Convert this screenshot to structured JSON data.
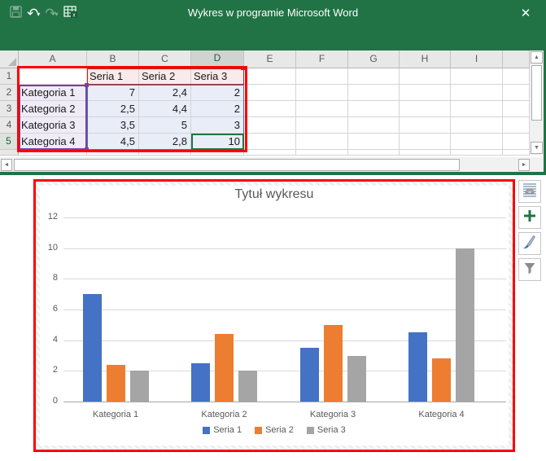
{
  "window": {
    "title": "Wykres w programie Microsoft Word",
    "close_glyph": "✕"
  },
  "toolbar": {
    "undo_glyph": "↶",
    "redo_glyph": "↷",
    "dropdown_glyph": "▾"
  },
  "spreadsheet": {
    "column_headers": [
      "A",
      "B",
      "C",
      "D",
      "E",
      "F",
      "G",
      "H",
      "I",
      ""
    ],
    "selected_column": "D",
    "selected_row": "5",
    "active_cell": "D5",
    "rows": [
      {
        "num": "1",
        "cells": [
          "",
          "Seria 1",
          "Seria 2",
          "Seria 3",
          "",
          "",
          "",
          "",
          "",
          ""
        ]
      },
      {
        "num": "2",
        "cells": [
          "Kategoria 1",
          "7",
          "2,4",
          "2",
          "",
          "",
          "",
          "",
          "",
          ""
        ]
      },
      {
        "num": "3",
        "cells": [
          "Kategoria 2",
          "2,5",
          "4,4",
          "2",
          "",
          "",
          "",
          "",
          "",
          ""
        ]
      },
      {
        "num": "4",
        "cells": [
          "Kategoria 3",
          "3,5",
          "5",
          "3",
          "",
          "",
          "",
          "",
          "",
          ""
        ]
      },
      {
        "num": "5",
        "cells": [
          "Kategoria 4",
          "4,5",
          "2,8",
          "10",
          "",
          "",
          "",
          "",
          "",
          ""
        ]
      }
    ],
    "scroll_glyphs": {
      "up": "▲",
      "down": "▼",
      "left": "◄",
      "right": "►"
    }
  },
  "chart_data": {
    "type": "bar",
    "title": "Tytuł wykresu",
    "categories": [
      "Kategoria 1",
      "Kategoria 2",
      "Kategoria 3",
      "Kategoria 4"
    ],
    "series": [
      {
        "name": "Seria 1",
        "color": "#4472C4",
        "values": [
          7,
          2.5,
          3.5,
          4.5
        ]
      },
      {
        "name": "Seria 2",
        "color": "#ED7D31",
        "values": [
          2.4,
          4.4,
          5,
          2.8
        ]
      },
      {
        "name": "Seria 3",
        "color": "#A5A5A5",
        "values": [
          2,
          2,
          3,
          10
        ]
      }
    ],
    "ylim": [
      0,
      12
    ],
    "ytick_step": 2,
    "grid": true,
    "legend_position": "bottom"
  },
  "chart_tools": [
    {
      "name": "layout-options"
    },
    {
      "name": "chart-elements"
    },
    {
      "name": "chart-styles"
    },
    {
      "name": "chart-filters"
    }
  ],
  "colors": {
    "titlebar_green": "#217346",
    "annotation_red": "#FE0101",
    "fill_values": "#E9EDF8",
    "fill_series_headers": "#FBEAEA",
    "fill_categories": "#EFECF8",
    "range_purple": "#7B3FA3",
    "range_dark_red": "#AF2B1E",
    "range_blue": "#4472C4",
    "active_cell_green": "#217346"
  }
}
